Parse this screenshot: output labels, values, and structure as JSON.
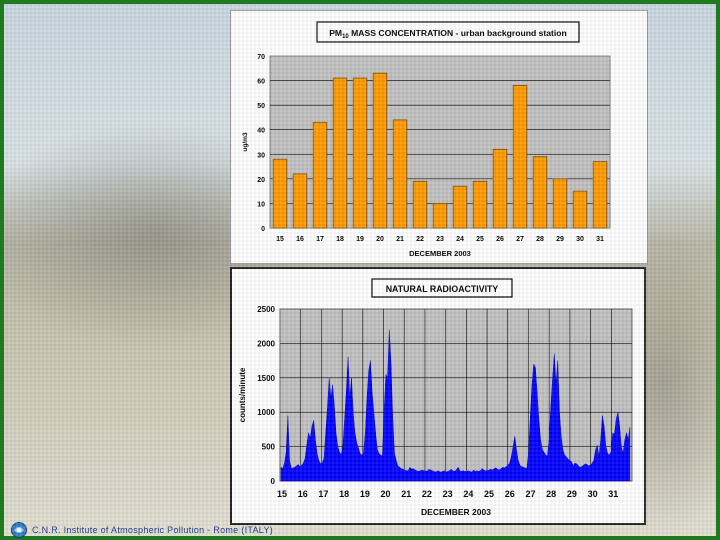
{
  "footer": {
    "institute": "C.N.R. Institute of Atmospheric Pollution - Rome (ITALY)"
  },
  "colors": {
    "frame": "#1f7a1f",
    "pm_bar": "#ff9900",
    "pm_plot_bg": "#c0c0c0",
    "rad_fill": "#0000ff",
    "rad_plot_bg": "#c0c0c0"
  },
  "chart_data": [
    {
      "type": "bar",
      "title_main": "PM",
      "title_sub": "10",
      "title_rest": " MASS CONCENTRATION - urban background station",
      "ylabel": "ug/m3",
      "xlabel": "DECEMBER 2003",
      "ylim": [
        0,
        70
      ],
      "yticks": [
        "0",
        "10",
        "20",
        "30",
        "40",
        "50",
        "60",
        "70"
      ],
      "categories": [
        "15",
        "16",
        "17",
        "18",
        "19",
        "20",
        "21",
        "22",
        "23",
        "24",
        "25",
        "26",
        "27",
        "28",
        "29",
        "30",
        "31"
      ],
      "values": [
        28,
        22,
        43,
        61,
        61,
        63,
        44,
        19,
        10,
        17,
        19,
        32,
        58,
        29,
        20,
        15,
        27
      ],
      "grid": true
    },
    {
      "type": "area",
      "title": "NATURAL RADIOACTIVITY",
      "ylabel": "counts/minute",
      "xlabel": "DECEMBER 2003",
      "ylim": [
        0,
        2500
      ],
      "yticks": [
        "0",
        "500",
        "1000",
        "1500",
        "2000",
        "2500"
      ],
      "xticks": [
        "15",
        "16",
        "17",
        "18",
        "19",
        "20",
        "21",
        "22",
        "23",
        "24",
        "25",
        "26",
        "27",
        "28",
        "29",
        "30",
        "31"
      ],
      "x_start_day": 15,
      "x_end_day": 32,
      "values": [
        200,
        180,
        260,
        420,
        950,
        300,
        180,
        190,
        200,
        220,
        240,
        210,
        230,
        260,
        330,
        520,
        700,
        620,
        800,
        880,
        600,
        400,
        300,
        250,
        260,
        330,
        700,
        1050,
        1500,
        1200,
        1400,
        1100,
        700,
        500,
        420,
        380,
        500,
        900,
        1300,
        1800,
        1200,
        1500,
        1000,
        700,
        560,
        480,
        400,
        380,
        400,
        700,
        1200,
        1600,
        1750,
        1300,
        1000,
        700,
        460,
        400,
        380,
        360,
        1050,
        1550,
        1500,
        2200,
        1700,
        900,
        400,
        300,
        220,
        200,
        180,
        170,
        160,
        150,
        150,
        200,
        170,
        180,
        160,
        150,
        140,
        150,
        160,
        150,
        150,
        140,
        170,
        160,
        150,
        140,
        130,
        150,
        140,
        130,
        140,
        150,
        130,
        140,
        150,
        170,
        150,
        140,
        160,
        200,
        150,
        140,
        150,
        140,
        140,
        150,
        140,
        130,
        160,
        140,
        150,
        140,
        150,
        180,
        160,
        150,
        150,
        160,
        170,
        160,
        180,
        190,
        170,
        160,
        180,
        200,
        190,
        210,
        230,
        260,
        350,
        500,
        650,
        450,
        300,
        230,
        210,
        200,
        190,
        180,
        400,
        900,
        1400,
        1700,
        1650,
        1300,
        900,
        600,
        460,
        420,
        380,
        360,
        600,
        1100,
        1500,
        1850,
        1400,
        1750,
        1000,
        650,
        450,
        380,
        350,
        320,
        300,
        280,
        220,
        260,
        250,
        220,
        200,
        210,
        230,
        250,
        240,
        220,
        230,
        260,
        300,
        450,
        520,
        350,
        600,
        950,
        800,
        500,
        400,
        380,
        420,
        700,
        680,
        900,
        1000,
        800,
        500,
        400,
        600,
        700,
        600,
        780
      ],
      "grid": true
    }
  ]
}
